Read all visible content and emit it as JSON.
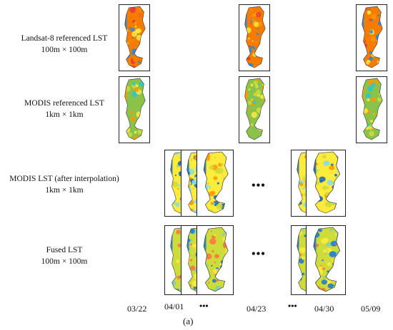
{
  "rows": [
    {
      "line1": "Landsat-8 referenced LST",
      "line2": "100m × 100m"
    },
    {
      "line1": "MODIS referenced LST",
      "line2": "1km × 1km"
    },
    {
      "line1": "MODIS LST (after interpolation)",
      "line2": "1km × 1km"
    },
    {
      "line1": "Fused LST",
      "line2": "100m × 100m"
    }
  ],
  "dates": [
    "03/22",
    "04/01",
    "•••",
    "04/23",
    "•••",
    "04/30",
    "05/09"
  ],
  "ellipsis": "•••",
  "caption": "(a)",
  "palettes": {
    "landsat": [
      "#f57c00",
      "#ff9800",
      "#e53935",
      "#ffeb3b",
      "#1e88e5"
    ],
    "modis_ref": [
      "#8bc34a",
      "#cddc39",
      "#ffeb3b",
      "#26c6da",
      "#ff9800"
    ],
    "interp": [
      "#ffeb3b",
      "#cddc39",
      "#80deea",
      "#ff9800",
      "#1565c0"
    ],
    "fused": [
      "#cddc39",
      "#ffeb3b",
      "#80cbc4",
      "#ff7043",
      "#1976d2"
    ]
  }
}
